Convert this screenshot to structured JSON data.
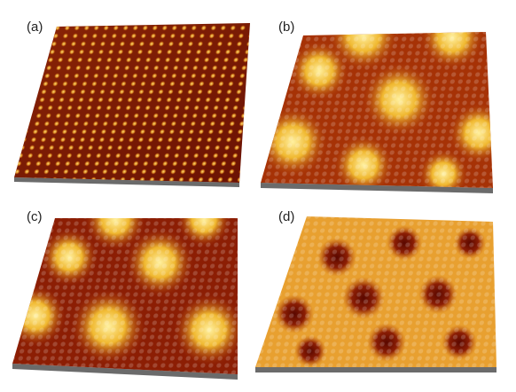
{
  "panels": [
    {
      "id": "a",
      "label": "(a)",
      "pattern": "fine-bump-lattice"
    },
    {
      "id": "b",
      "label": "(b)",
      "pattern": "large-period-moire"
    },
    {
      "id": "c",
      "label": "(c)",
      "pattern": "triangular-hill-moire"
    },
    {
      "id": "d",
      "label": "(d)",
      "pattern": "depression-moire"
    }
  ],
  "colors": {
    "dark": "#5a0a00",
    "mid": "#b43a06",
    "bright": "#f5d45a",
    "base": "#6b6b6b"
  }
}
